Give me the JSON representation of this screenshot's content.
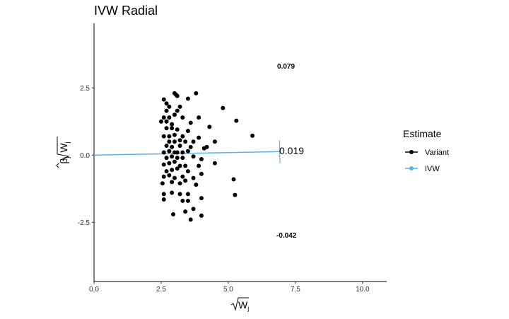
{
  "chart_data": {
    "type": "scatter",
    "title": "IVW Radial",
    "xlabel": "Wj",
    "ylabel": "βj Wj",
    "xlim": [
      0,
      10.9
    ],
    "ylim": [
      -4.7,
      4.9
    ],
    "x_ticks": [
      "0.0",
      "2.5",
      "5.0",
      "7.5",
      "10.0"
    ],
    "y_ticks": [
      "-2.5",
      "0.0",
      "2.5"
    ],
    "grid": false,
    "legend": {
      "title": "Estimate",
      "placement": "right",
      "entries": [
        {
          "label": "Variant",
          "color": "#000000"
        },
        {
          "label": "IVW",
          "color": "#56B4E9"
        }
      ]
    },
    "annotations": {
      "upper_ci": "0.079",
      "estimate": "0.019",
      "lower_ci": "-0.042"
    },
    "ivw_line": {
      "slope": 0.019,
      "x_end": 6.93,
      "color": "#56B4E9"
    },
    "ivw_arc": {
      "radius": 6.93,
      "theta_min": -0.042,
      "theta_max": 0.079
    },
    "series": [
      {
        "name": "Variant",
        "points": [
          [
            2.6,
            2.07
          ],
          [
            2.7,
            1.92
          ],
          [
            3.0,
            2.3
          ],
          [
            3.05,
            2.25
          ],
          [
            3.1,
            2.2
          ],
          [
            3.5,
            2.1
          ],
          [
            3.8,
            2.3
          ],
          [
            4.8,
            1.75
          ],
          [
            5.3,
            1.28
          ],
          [
            5.9,
            0.72
          ],
          [
            2.8,
            1.8
          ],
          [
            3.2,
            1.8
          ],
          [
            2.7,
            1.65
          ],
          [
            3.1,
            1.65
          ],
          [
            2.6,
            1.4
          ],
          [
            2.8,
            1.4
          ],
          [
            3.0,
            1.5
          ],
          [
            3.3,
            1.4
          ],
          [
            3.9,
            1.4
          ],
          [
            4.3,
            1.05
          ],
          [
            2.5,
            1.25
          ],
          [
            2.7,
            1.25
          ],
          [
            2.9,
            1.15
          ],
          [
            3.6,
            1.2
          ],
          [
            2.7,
            1.0
          ],
          [
            2.9,
            1.0
          ],
          [
            3.1,
            0.95
          ],
          [
            3.5,
            0.9
          ],
          [
            2.6,
            0.7
          ],
          [
            2.8,
            0.7
          ],
          [
            3.0,
            0.75
          ],
          [
            3.3,
            0.7
          ],
          [
            3.9,
            0.65
          ],
          [
            4.5,
            0.5
          ],
          [
            2.8,
            0.5
          ],
          [
            3.0,
            0.5
          ],
          [
            3.2,
            0.55
          ],
          [
            3.4,
            0.5
          ],
          [
            3.7,
            0.5
          ],
          [
            2.7,
            0.35
          ],
          [
            2.9,
            0.3
          ],
          [
            3.2,
            0.35
          ],
          [
            3.6,
            0.3
          ],
          [
            4.1,
            0.25
          ],
          [
            4.2,
            0.3
          ],
          [
            2.6,
            0.1
          ],
          [
            2.8,
            0.15
          ],
          [
            3.0,
            0.1
          ],
          [
            3.1,
            0.1
          ],
          [
            3.3,
            0.1
          ],
          [
            3.5,
            0.15
          ],
          [
            2.7,
            -0.1
          ],
          [
            2.9,
            -0.05
          ],
          [
            3.1,
            -0.1
          ],
          [
            3.3,
            -0.1
          ],
          [
            3.7,
            -0.05
          ],
          [
            4.0,
            -0.15
          ],
          [
            4.5,
            -0.3
          ],
          [
            2.6,
            -0.35
          ],
          [
            2.8,
            -0.3
          ],
          [
            3.0,
            -0.25
          ],
          [
            3.2,
            -0.4
          ],
          [
            3.4,
            -0.4
          ],
          [
            3.9,
            -0.4
          ],
          [
            2.7,
            -0.6
          ],
          [
            2.9,
            -0.55
          ],
          [
            3.1,
            -0.5
          ],
          [
            3.5,
            -0.6
          ],
          [
            4.0,
            -0.7
          ],
          [
            2.6,
            -0.8
          ],
          [
            2.8,
            -0.75
          ],
          [
            3.0,
            -0.85
          ],
          [
            3.3,
            -0.8
          ],
          [
            3.7,
            -0.85
          ],
          [
            2.55,
            -1.05
          ],
          [
            2.9,
            -1.0
          ],
          [
            3.2,
            -1.05
          ],
          [
            3.4,
            -0.95
          ],
          [
            3.8,
            -1.1
          ],
          [
            5.2,
            -0.9
          ],
          [
            2.6,
            -1.45
          ],
          [
            2.9,
            -1.4
          ],
          [
            3.2,
            -1.45
          ],
          [
            3.5,
            -1.45
          ],
          [
            3.3,
            -1.7
          ],
          [
            3.5,
            -1.7
          ],
          [
            4.0,
            -1.6
          ],
          [
            5.25,
            -1.48
          ],
          [
            2.6,
            -1.65
          ],
          [
            3.7,
            -2.0
          ],
          [
            3.4,
            -2.1
          ],
          [
            2.95,
            -2.2
          ],
          [
            4.0,
            -2.25
          ],
          [
            3.6,
            -2.4
          ]
        ]
      }
    ]
  }
}
